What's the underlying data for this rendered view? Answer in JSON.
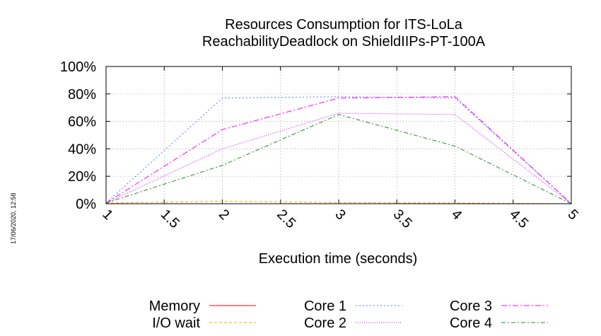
{
  "chart_data": {
    "type": "line",
    "title": [
      "Resources Consumption for ITS-LoLa",
      "ReachabilityDeadlock on ShieldIIPs-PT-100A"
    ],
    "xlabel": "Execution time (seconds)",
    "ylabel": "",
    "xlim": [
      1,
      5
    ],
    "ylim": [
      0,
      100
    ],
    "x_ticks": [
      "1",
      "1.5",
      "2",
      "2.5",
      "3",
      "3.5",
      "4",
      "4.5",
      "5"
    ],
    "y_ticks": [
      "0%",
      "20%",
      "40%",
      "60%",
      "80%",
      "100%"
    ],
    "grid": true,
    "legend_position": "bottom",
    "series": [
      {
        "name": "Memory",
        "color": "#ff0000",
        "dash": "",
        "x": [
          1,
          2,
          3,
          4,
          5
        ],
        "y": [
          0,
          0,
          0,
          0,
          0
        ]
      },
      {
        "name": "I/O wait",
        "color": "#ffa500",
        "dash": "4,3",
        "x": [
          1,
          2,
          3,
          4,
          5
        ],
        "y": [
          0.5,
          1.8,
          0.8,
          0.5,
          0
        ]
      },
      {
        "name": "Core 1",
        "color": "#4f7fff",
        "dash": "2,3",
        "x": [
          1,
          2,
          3,
          4,
          5
        ],
        "y": [
          0.5,
          77,
          78,
          77,
          0
        ]
      },
      {
        "name": "Core 2",
        "color": "#c000ff",
        "dash": "1,2",
        "x": [
          1,
          2,
          3,
          4,
          5
        ],
        "y": [
          0.5,
          40,
          66,
          65,
          0
        ]
      },
      {
        "name": "Core 3",
        "color": "#ff00ff",
        "dash": "8,3,2,3",
        "x": [
          1,
          2,
          3,
          4,
          5
        ],
        "y": [
          0.5,
          54,
          77,
          78,
          0
        ]
      },
      {
        "name": "Core 4",
        "color": "#228b22",
        "dash": "6,3,2,3",
        "x": [
          1,
          2,
          3,
          4,
          5
        ],
        "y": [
          0.5,
          28,
          65,
          42,
          0
        ]
      }
    ]
  },
  "timestamp": "17/06/2020, 12:58"
}
